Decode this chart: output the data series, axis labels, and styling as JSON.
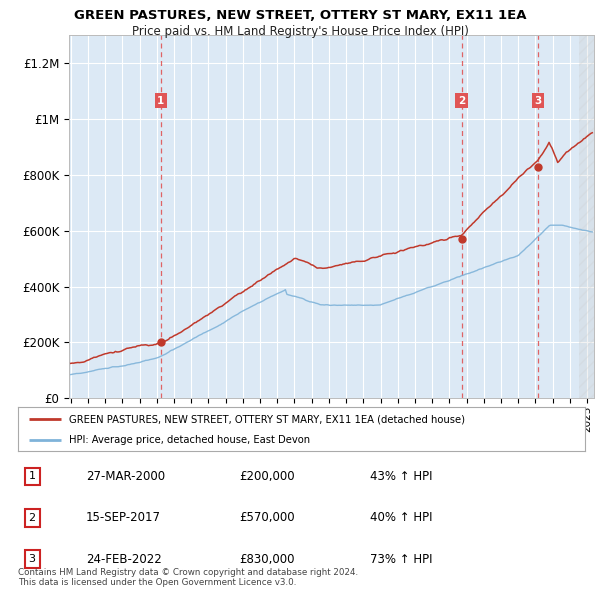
{
  "title": "GREEN PASTURES, NEW STREET, OTTERY ST MARY, EX11 1EA",
  "subtitle": "Price paid vs. HM Land Registry's House Price Index (HPI)",
  "plot_bg_color": "#dce9f5",
  "ylim": [
    0,
    1300000
  ],
  "yticks": [
    0,
    200000,
    400000,
    600000,
    800000,
    1000000,
    1200000
  ],
  "ytick_labels": [
    "£0",
    "£200K",
    "£400K",
    "£600K",
    "£800K",
    "£1M",
    "£1.2M"
  ],
  "xstart": 1995,
  "xend": 2025,
  "sale_dates_num": [
    2000.24,
    2017.71,
    2022.15
  ],
  "sale_prices": [
    200000,
    570000,
    830000
  ],
  "sale_labels": [
    "1",
    "2",
    "3"
  ],
  "red_line_color": "#c0392b",
  "blue_line_color": "#7fb3d9",
  "dashed_line_color": "#e05555",
  "legend_red_label": "GREEN PASTURES, NEW STREET, OTTERY ST MARY, EX11 1EA (detached house)",
  "legend_blue_label": "HPI: Average price, detached house, East Devon",
  "table_rows": [
    {
      "num": "1",
      "date": "27-MAR-2000",
      "price": "£200,000",
      "pct": "43% ↑ HPI"
    },
    {
      "num": "2",
      "date": "15-SEP-2017",
      "price": "£570,000",
      "pct": "40% ↑ HPI"
    },
    {
      "num": "3",
      "date": "24-FEB-2022",
      "price": "£830,000",
      "pct": "73% ↑ HPI"
    }
  ],
  "footer": "Contains HM Land Registry data © Crown copyright and database right 2024.\nThis data is licensed under the Open Government Licence v3.0."
}
